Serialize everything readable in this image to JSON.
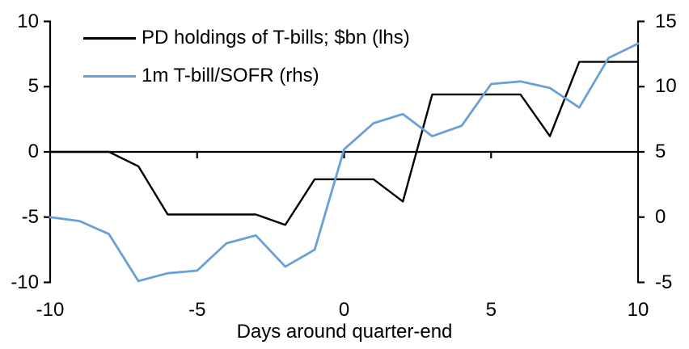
{
  "legend": {
    "items": [
      {
        "label": "PD holdings of T-bills; $bn (lhs)",
        "color": "#000000"
      },
      {
        "label": "1m T-bill/SOFR (rhs)",
        "color": "#69A0D7"
      }
    ]
  },
  "chart_data": {
    "type": "line",
    "title": "",
    "xlabel": "Days around quarter-end",
    "ylabel_left": "",
    "ylabel_right": "",
    "grid": false,
    "legend_position": "top-left",
    "x": [
      -10,
      -9,
      -8,
      -7,
      -6,
      -5,
      -4,
      -3,
      -2,
      -1,
      0,
      1,
      2,
      3,
      4,
      5,
      6,
      7,
      8,
      9,
      10
    ],
    "x_range": [
      -10,
      10
    ],
    "x_ticks": [
      -10,
      -5,
      0,
      5,
      10
    ],
    "left_axis": {
      "range": [
        -10,
        10
      ],
      "ticks": [
        10,
        5,
        0,
        -5,
        -10
      ]
    },
    "right_axis": {
      "range": [
        -5,
        15
      ],
      "ticks": [
        15,
        10,
        5,
        0,
        -5
      ]
    },
    "series": [
      {
        "name": "PD holdings of T-bills; $bn (lhs)",
        "axis": "left",
        "color": "#000000",
        "values": [
          0,
          0,
          0,
          -1.1,
          -4.8,
          -4.8,
          -4.8,
          -4.8,
          -5.6,
          -2.1,
          -2.1,
          -2.1,
          -3.8,
          4.4,
          4.4,
          4.4,
          4.4,
          1.2,
          6.9,
          6.9,
          6.9
        ]
      },
      {
        "name": "1m T-bill/SOFR (rhs)",
        "axis": "right",
        "color": "#69A0D7",
        "values": [
          0.0,
          -0.3,
          -1.3,
          -4.9,
          -4.3,
          -4.1,
          -2.0,
          -1.4,
          -3.8,
          -2.5,
          5.2,
          7.2,
          7.9,
          6.2,
          7.0,
          10.2,
          10.4,
          9.9,
          8.4,
          12.2,
          13.3
        ]
      }
    ]
  }
}
